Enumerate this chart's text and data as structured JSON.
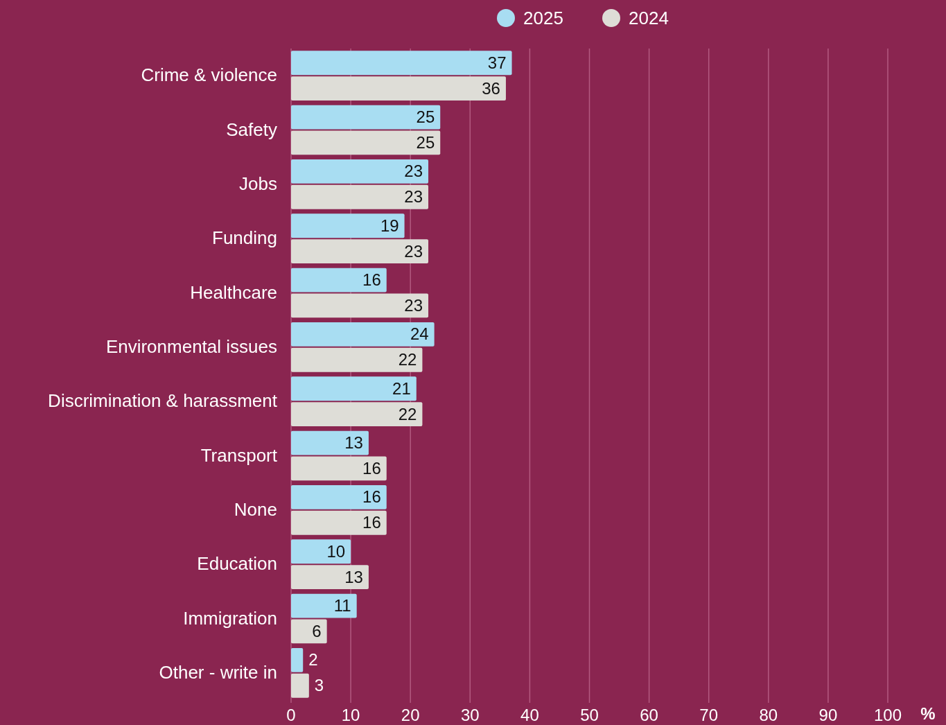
{
  "chart_data": {
    "type": "bar",
    "orientation": "horizontal",
    "xlabel": "%",
    "categories": [
      "Crime & violence",
      "Safety",
      "Jobs",
      "Funding",
      "Healthcare",
      "Environmental issues",
      "Discrimination & harassment",
      "Transport",
      "None",
      "Education",
      "Immigration",
      "Other - write in"
    ],
    "series": [
      {
        "name": "2025",
        "color": "#a8ddf2",
        "values": [
          37,
          25,
          23,
          19,
          16,
          24,
          21,
          13,
          16,
          10,
          11,
          2
        ]
      },
      {
        "name": "2024",
        "color": "#deddd7",
        "values": [
          36,
          25,
          23,
          23,
          23,
          22,
          22,
          16,
          16,
          13,
          6,
          3
        ]
      }
    ],
    "xlim": [
      0,
      100
    ],
    "xticks": [
      0,
      10,
      20,
      30,
      40,
      50,
      60,
      70,
      80,
      90,
      100
    ],
    "grid": "x",
    "legend": "top",
    "data_labels": true
  }
}
